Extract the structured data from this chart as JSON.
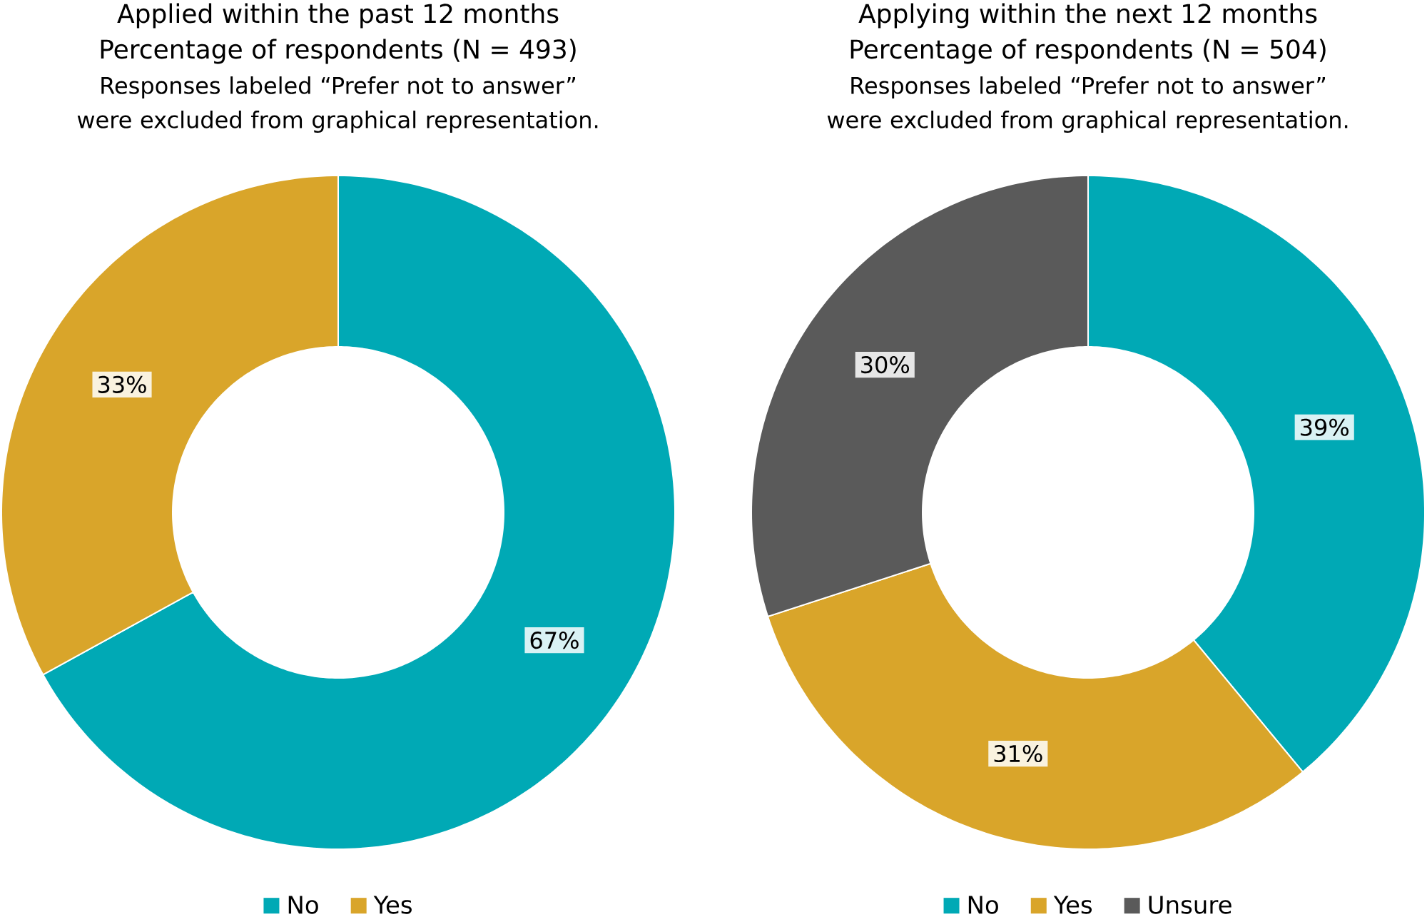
{
  "chart_data": [
    {
      "type": "donut",
      "title": "Applied within the past 12 months",
      "subtitle": "Percentage of respondents (N = 493)",
      "annotations": [
        "Responses labeled “Prefer not to answer” were excluded from graphical representation."
      ],
      "categories": [
        "No",
        "Yes"
      ],
      "values": [
        67,
        33
      ],
      "colors": [
        "#00a9b5",
        "#d9a52a"
      ],
      "data_labels": true,
      "value_labels": [
        "67%",
        "33%"
      ],
      "legend": "bottom"
    },
    {
      "type": "donut",
      "title": "Applying within the next 12 months",
      "subtitle": "Percentage of respondents (N = 504)",
      "annotations": [
        "Responses labeled “Prefer not to answer” were excluded from graphical representation."
      ],
      "categories": [
        "No",
        "Yes",
        "Unsure"
      ],
      "values": [
        39,
        31,
        30
      ],
      "colors": [
        "#00a9b5",
        "#d9a52a",
        "#5a5a5a"
      ],
      "data_labels": true,
      "value_labels": [
        "39%",
        "31%",
        "30%"
      ],
      "legend": "bottom"
    }
  ]
}
